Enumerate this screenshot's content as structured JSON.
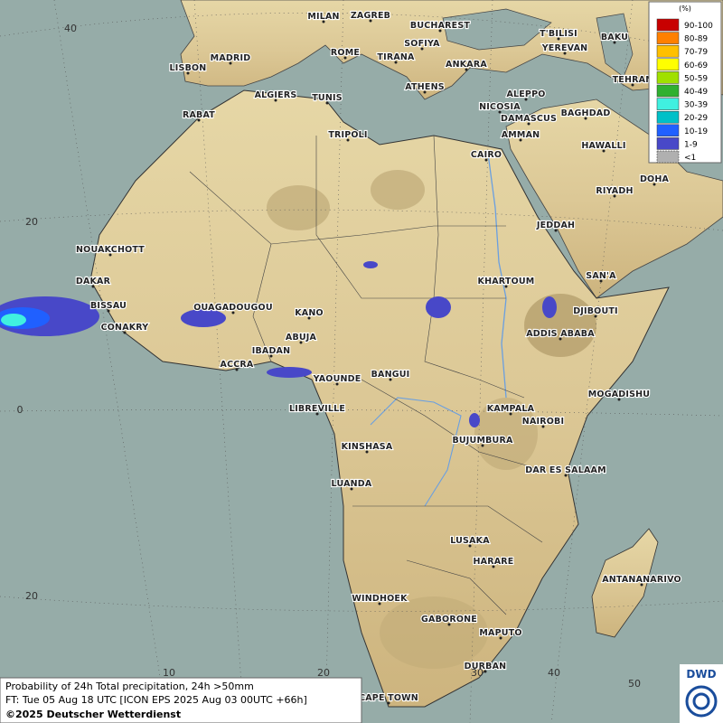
{
  "map": {
    "cities": [
      "MILAN",
      "ZAGREB",
      "BUCHAREST",
      "T'BILISI",
      "BAKU",
      "ROME",
      "SOFIYA",
      "YEREVAN",
      "MADRID",
      "TIRANA",
      "ANKARA",
      "LISBON",
      "TEHRAN",
      "ATHENS",
      "ALGIERS",
      "TUNIS",
      "ALEPPO",
      "NICOSIA",
      "RABAT",
      "BAGHDAD",
      "DAMASCUS",
      "TRIPOLI",
      "AMMAN",
      "HAWALLI",
      "CAIRO",
      "DOHA",
      "RIYADH",
      "NOUAKCHOTT",
      "JEDDAH",
      "SAN'A",
      "DAKAR",
      "KHARTOUM",
      "BISSAU",
      "DJIBOUTI",
      "OUAGADOUGOU",
      "KANO",
      "CONAKRY",
      "ABUJA",
      "ADDIS ABABA",
      "IBADAN",
      "ACCRA",
      "YAOUNDE",
      "BANGUI",
      "MOGADISHU",
      "LIBREVILLE",
      "KAMPALA",
      "NAIROBI",
      "KINSHASA",
      "BUJUMBURA",
      "DAR ES SALAAM",
      "LUANDA",
      "LUSAKA",
      "HARARE",
      "ANTANANARIVO",
      "WINDHOEK",
      "GABORONE",
      "MAPUTO",
      "DURBAN",
      "CAPE TOWN"
    ],
    "grid_labels": [
      "40",
      "20",
      "0",
      "20",
      "10",
      "20",
      "30",
      "40",
      "50"
    ]
  },
  "legend": {
    "unit": "(%)",
    "classes": [
      {
        "label": "90-100",
        "color": "#c80000"
      },
      {
        "label": "80-89",
        "color": "#ff8000"
      },
      {
        "label": "70-79",
        "color": "#ffc000"
      },
      {
        "label": "60-69",
        "color": "#ffff00"
      },
      {
        "label": "50-59",
        "color": "#a0e000"
      },
      {
        "label": "40-49",
        "color": "#30b030"
      },
      {
        "label": "30-39",
        "color": "#40f0e0"
      },
      {
        "label": "20-29",
        "color": "#00c0c8"
      },
      {
        "label": "10-19",
        "color": "#2060ff"
      },
      {
        "label": "1-9",
        "color": "#4848c8"
      },
      {
        "label": "<1",
        "color": "#b0b0b0"
      }
    ]
  },
  "caption": {
    "line1": "Probability of 24h Total precipitation, 24h >50mm",
    "line2": "FT: Tue 05 Aug 18 UTC [ICON EPS 2025 Aug 03 00UTC +66h]",
    "line3": "©2025 Deutscher Wetterdienst"
  },
  "logo": "DWD"
}
